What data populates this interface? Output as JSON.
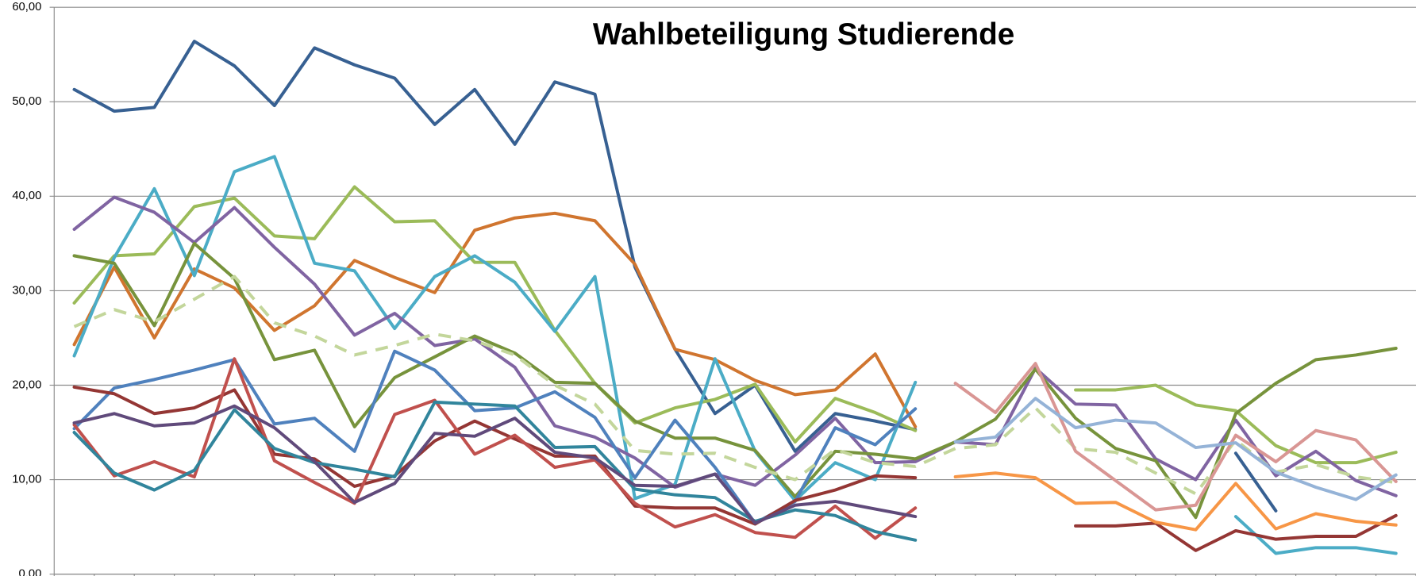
{
  "chart_data": {
    "type": "line",
    "title": "Wahlbeteiligung Studierende",
    "categories": [
      null,
      null,
      null,
      null,
      null,
      null,
      null,
      null,
      null,
      null,
      null,
      null,
      null,
      null,
      null,
      null,
      null,
      null,
      null,
      null,
      null,
      null,
      null,
      null,
      null,
      null,
      null,
      null,
      null,
      null,
      null,
      null,
      null,
      null
    ],
    "ylim": [
      0,
      60
    ],
    "yticks": [
      {
        "value": 0,
        "label": "0,00"
      },
      {
        "value": 10,
        "label": "10,00"
      },
      {
        "value": 20,
        "label": "20,00"
      },
      {
        "value": 30,
        "label": "30,00"
      },
      {
        "value": 40,
        "label": "40,00"
      },
      {
        "value": 50,
        "label": "50,00"
      },
      {
        "value": 60,
        "label": "60,00"
      }
    ],
    "grid": true,
    "series": [
      {
        "color": "#376092",
        "values": [
          51.3,
          49,
          49.4,
          56.4,
          53.8,
          49.6,
          55.7,
          53.9,
          52.5,
          47.6,
          51.3,
          45.5,
          52.1,
          50.8,
          32.5,
          23.8,
          17,
          20,
          13,
          17,
          16.2,
          15.3,
          null,
          null,
          null,
          null,
          null,
          null,
          null,
          12.8,
          6.7,
          null,
          null,
          null
        ]
      },
      {
        "color": "#d0752f",
        "values": [
          24.3,
          32.5,
          25,
          32.3,
          30.3,
          25.8,
          28.4,
          33.2,
          31.4,
          29.8,
          36.4,
          37.7,
          38.2,
          37.4,
          32.8,
          23.8,
          22.7,
          20.5,
          19,
          19.5,
          23.3,
          15.6,
          null,
          null,
          null,
          null,
          null,
          null,
          null,
          null,
          null,
          null,
          null,
          null
        ]
      },
      {
        "color": "#9bbb59",
        "values": [
          28.7,
          33.7,
          33.9,
          38.9,
          39.8,
          35.8,
          35.5,
          41,
          37.3,
          37.4,
          33,
          33,
          25.8,
          20.2,
          16,
          17.6,
          18.5,
          20.1,
          14,
          18.6,
          17.1,
          15.2,
          null,
          null,
          null,
          19.5,
          19.5,
          20,
          17.9,
          17.3,
          13.6,
          11.8,
          11.8,
          12.9
        ]
      },
      {
        "color": "#4bacc6",
        "values": [
          23.1,
          33.5,
          40.8,
          31.6,
          42.6,
          44.2,
          32.9,
          32.1,
          26,
          31.5,
          33.7,
          30.9,
          25.7,
          31.5,
          8,
          9.5,
          22.8,
          13,
          7.8,
          11.8,
          10,
          20.3,
          null,
          null,
          null,
          null,
          null,
          null,
          null,
          6.1,
          2.2,
          2.8,
          2.8,
          2.2
        ]
      },
      {
        "color": "#8064a2",
        "values": [
          36.5,
          39.9,
          38.3,
          35.1,
          38.8,
          34.6,
          30.7,
          25.3,
          27.6,
          24.2,
          24.9,
          21.9,
          15.7,
          14.5,
          12.3,
          9.2,
          10.6,
          9.4,
          12.6,
          16.5,
          11.8,
          11.9,
          14,
          13.7,
          21.8,
          18,
          17.9,
          12.2,
          10,
          16.3,
          10.4,
          13,
          9.9,
          8.3
        ]
      },
      {
        "color": "#77933c",
        "values": [
          33.7,
          32.9,
          26.3,
          35,
          31.3,
          22.7,
          23.7,
          15.6,
          20.8,
          23,
          25.2,
          23.4,
          20.3,
          20.2,
          16.2,
          14.4,
          14.4,
          13.1,
          8.2,
          13,
          12.7,
          12.2,
          14,
          16.4,
          21.7,
          16.5,
          13.3,
          12,
          6,
          17,
          20.2,
          22.7,
          23.2,
          23.9
        ]
      },
      {
        "color": "#4f81bd",
        "values": [
          15.4,
          19.7,
          20.6,
          21.6,
          22.7,
          15.9,
          16.5,
          13,
          23.6,
          21.6,
          17.3,
          17.6,
          19.3,
          16.6,
          10.2,
          16.3,
          11.3,
          5.4,
          7.7,
          15.5,
          13.7,
          17.5,
          null,
          null,
          null,
          null,
          null,
          null,
          null,
          null,
          null,
          null,
          null,
          null
        ]
      },
      {
        "color": "#943634",
        "values": [
          19.8,
          19.1,
          17,
          17.6,
          19.5,
          12.7,
          12.2,
          9.3,
          10.4,
          14.1,
          16.2,
          14.3,
          12.5,
          12.5,
          7.2,
          7,
          7,
          5.3,
          7.8,
          8.9,
          10.4,
          10.2,
          null,
          null,
          null,
          5.1,
          5.1,
          5.4,
          2.5,
          4.6,
          3.7,
          4,
          4,
          6.2
        ]
      },
      {
        "color": "#c0504d",
        "values": [
          15.8,
          10.4,
          11.9,
          10.3,
          22.8,
          12,
          9.7,
          7.5,
          16.9,
          18.4,
          12.7,
          14.7,
          11.3,
          12.1,
          7.5,
          5,
          6.3,
          4.4,
          3.9,
          7.2,
          3.8,
          7,
          null,
          null,
          null,
          null,
          null,
          null,
          null,
          null,
          null,
          null,
          null,
          null
        ]
      },
      {
        "color": "#31859c",
        "values": [
          15,
          10.7,
          8.9,
          11,
          17.4,
          13.3,
          11.8,
          11.1,
          10.3,
          18.2,
          18,
          17.8,
          13.4,
          13.5,
          9,
          8.4,
          8.1,
          5.6,
          6.8,
          6.2,
          4.5,
          3.6,
          null,
          null,
          null,
          null,
          null,
          null,
          null,
          null,
          null,
          null,
          null,
          null
        ]
      },
      {
        "color": "#604a7b",
        "values": [
          16,
          17,
          15.7,
          16,
          17.8,
          15.5,
          11.9,
          7.6,
          9.6,
          14.9,
          14.6,
          16.5,
          12.9,
          12.3,
          9.4,
          9.3,
          10.6,
          5.4,
          7.3,
          7.7,
          6.9,
          6.1,
          null,
          null,
          null,
          null,
          null,
          null,
          null,
          null,
          null,
          null,
          null,
          null
        ]
      },
      {
        "color": "#c3d69b",
        "dashed": true,
        "values": [
          26.2,
          28,
          26.7,
          29.1,
          31.5,
          26.6,
          25.2,
          23.2,
          24.2,
          25.4,
          24.7,
          23.2,
          20,
          18,
          13.1,
          12.7,
          12.8,
          11.3,
          10,
          13.2,
          11.8,
          11.4,
          13.3,
          13.7,
          17.6,
          13.3,
          12.9,
          10.7,
          8.5,
          14.2,
          10.8,
          11.6,
          10.3,
          9.7
        ]
      },
      {
        "color": "#d99694",
        "values": [
          null,
          null,
          null,
          null,
          null,
          null,
          null,
          null,
          null,
          null,
          null,
          null,
          null,
          null,
          null,
          null,
          null,
          null,
          null,
          null,
          null,
          null,
          20.2,
          17.1,
          22.3,
          13,
          9.9,
          6.8,
          7.3,
          14.7,
          11.9,
          15.2,
          14.2,
          9.8
        ]
      },
      {
        "color": "#95b3d7",
        "values": [
          null,
          null,
          null,
          null,
          null,
          null,
          null,
          null,
          null,
          null,
          null,
          null,
          null,
          null,
          null,
          null,
          null,
          null,
          null,
          null,
          null,
          null,
          14,
          14.5,
          18.6,
          15.5,
          16.3,
          16,
          13.4,
          13.9,
          10.8,
          9.2,
          7.9,
          10.5
        ]
      },
      {
        "color": "#f79646",
        "values": [
          null,
          null,
          null,
          null,
          null,
          null,
          null,
          null,
          null,
          null,
          null,
          null,
          null,
          null,
          null,
          null,
          null,
          null,
          null,
          null,
          null,
          null,
          10.3,
          10.7,
          10.2,
          7.5,
          7.6,
          5.5,
          4.7,
          9.6,
          4.8,
          6.4,
          5.6,
          5.2
        ]
      }
    ]
  }
}
